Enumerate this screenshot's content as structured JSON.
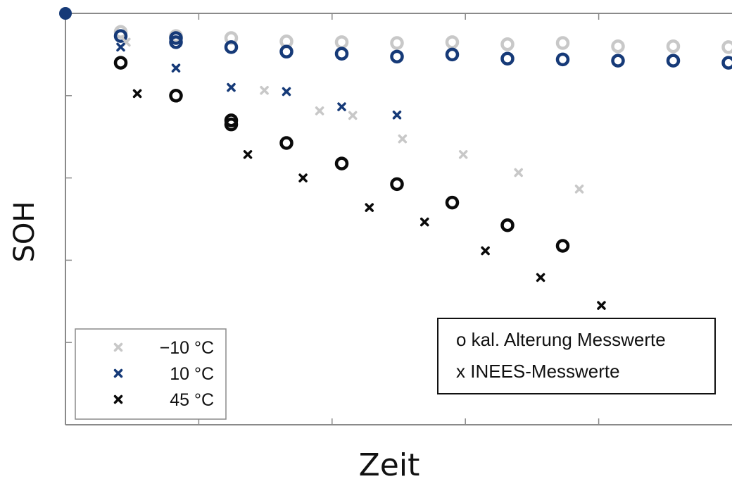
{
  "chart_data": {
    "type": "scatter",
    "xlabel": "Zeit",
    "ylabel": "SOH",
    "xlim": [
      0,
      12
    ],
    "ylim": [
      0,
      1
    ],
    "grid": false,
    "marker_legend": {
      "placement": "bottom-right",
      "entries": [
        {
          "symbol": "o",
          "label": "kal. Alterung Messwerte"
        },
        {
          "symbol": "x",
          "label": "INEES-Messwerte"
        }
      ]
    },
    "temperature_legend": {
      "placement": "bottom-left",
      "entries": [
        {
          "label": "−10 °C",
          "color": "#c8c8c8"
        },
        {
          "label": "10 °C",
          "color": "#163a78"
        },
        {
          "label": "45 °C",
          "color": "#0a0a0a"
        }
      ]
    },
    "series": [
      {
        "name": "−10 °C",
        "marker": "o",
        "color": "#c8c8c8",
        "x": [
          1.0,
          2.0,
          3.0,
          4.0,
          5.0,
          6.0,
          7.0,
          8.0,
          9.0,
          10.0,
          11.0,
          12.0
        ],
        "y": [
          0.955,
          0.945,
          0.94,
          0.932,
          0.93,
          0.928,
          0.93,
          0.925,
          0.928,
          0.92,
          0.92,
          0.918
        ]
      },
      {
        "name": "10 °C",
        "marker": "o",
        "color": "#163a78",
        "x": [
          1.0,
          2.0,
          2.0,
          3.0,
          4.0,
          5.0,
          6.0,
          7.0,
          8.0,
          9.0,
          10.0,
          11.0,
          12.0
        ],
        "y": [
          0.945,
          0.94,
          0.93,
          0.918,
          0.907,
          0.902,
          0.895,
          0.9,
          0.89,
          0.888,
          0.885,
          0.885,
          0.88
        ]
      },
      {
        "name": "45 °C",
        "marker": "o",
        "color": "#0a0a0a",
        "x": [
          1.0,
          2.0,
          3.0,
          3.0,
          4.0,
          5.0,
          6.0,
          7.0,
          8.0,
          9.0
        ],
        "y": [
          0.88,
          0.8,
          0.74,
          0.73,
          0.685,
          0.635,
          0.585,
          0.54,
          0.485,
          0.435
        ]
      },
      {
        "name": "−10 °C",
        "marker": "x",
        "color": "#c8c8c8",
        "x": [
          1.1,
          3.6,
          4.6,
          5.2,
          6.1,
          7.2,
          8.2,
          9.3
        ],
        "y": [
          0.93,
          0.813,
          0.763,
          0.752,
          0.695,
          0.657,
          0.613,
          0.573
        ]
      },
      {
        "name": "10 °C",
        "marker": "x",
        "color": "#163a78",
        "x": [
          1.0,
          2.0,
          3.0,
          4.0,
          5.0,
          6.0
        ],
        "y": [
          0.918,
          0.867,
          0.82,
          0.81,
          0.773,
          0.753
        ]
      },
      {
        "name": "45 °C",
        "marker": "x",
        "color": "#0a0a0a",
        "x": [
          1.3,
          3.3,
          4.3,
          5.5,
          6.5,
          7.6,
          8.6,
          9.7
        ],
        "y": [
          0.805,
          0.657,
          0.6,
          0.528,
          0.493,
          0.423,
          0.358,
          0.29
        ]
      }
    ]
  }
}
